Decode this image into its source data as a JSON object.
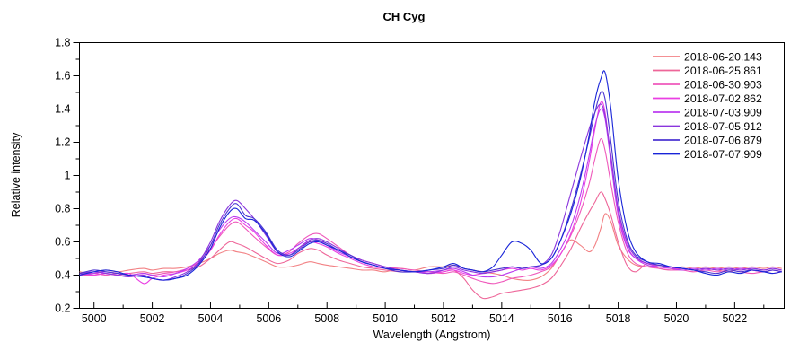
{
  "chart_data": {
    "type": "line",
    "title": "CH Cyg",
    "xlabel": "Wavelength (Angstrom)",
    "ylabel": "Relative intensity",
    "xlim": [
      4999.5,
      5023.7
    ],
    "ylim": [
      0.2,
      1.8
    ],
    "grid": false,
    "legend_position": "top-right",
    "axis_color": "#000000",
    "xticks": {
      "major_values": [
        5000,
        5002,
        5004,
        5006,
        5008,
        5010,
        5012,
        5014,
        5016,
        5018,
        5020,
        5022
      ],
      "major_labels": [
        "5000",
        "5002",
        "5004",
        "5006",
        "5008",
        "5010",
        "5012",
        "5014",
        "5016",
        "5018",
        "5020",
        "5022"
      ],
      "minor_step": 1
    },
    "yticks": {
      "major_values": [
        0.2,
        0.4,
        0.6,
        0.8,
        1.0,
        1.2,
        1.4,
        1.6,
        1.8
      ],
      "major_labels": [
        "0.2",
        "0.4",
        "0.6",
        "0.8",
        "1",
        "1.2",
        "1.4",
        "1.6",
        "1.8"
      ],
      "minor_step": 0.1
    },
    "x": [
      4999.5,
      5000.0,
      5000.4,
      5000.8,
      5001.2,
      5001.7,
      5002.0,
      5002.4,
      5002.8,
      5003.2,
      5003.6,
      5004.0,
      5004.3,
      5004.65,
      5004.9,
      5005.2,
      5005.5,
      5005.9,
      5006.3,
      5006.7,
      5007.0,
      5007.4,
      5007.7,
      5008.0,
      5008.4,
      5008.8,
      5009.2,
      5009.6,
      5010.0,
      5010.5,
      5011.0,
      5011.5,
      5012.0,
      5012.35,
      5012.7,
      5013.0,
      5013.35,
      5013.7,
      5014.0,
      5014.35,
      5014.7,
      5015.0,
      5015.35,
      5015.7,
      5016.0,
      5016.35,
      5016.7,
      5017.0,
      5017.2,
      5017.4,
      5017.55,
      5017.75,
      5018.0,
      5018.3,
      5018.6,
      5019.0,
      5019.4,
      5019.8,
      5020.2,
      5020.6,
      5021.0,
      5021.4,
      5021.8,
      5022.2,
      5022.6,
      5023.0,
      5023.3,
      5023.6
    ],
    "series": [
      {
        "name": "2018-06-20.143",
        "color": "#f28184",
        "values": [
          0.42,
          0.41,
          0.43,
          0.42,
          0.43,
          0.44,
          0.43,
          0.44,
          0.44,
          0.45,
          0.47,
          0.5,
          0.53,
          0.55,
          0.54,
          0.53,
          0.51,
          0.48,
          0.45,
          0.45,
          0.46,
          0.48,
          0.47,
          0.46,
          0.45,
          0.44,
          0.43,
          0.43,
          0.42,
          0.44,
          0.43,
          0.45,
          0.45,
          0.46,
          0.44,
          0.43,
          0.42,
          0.41,
          0.4,
          0.38,
          0.37,
          0.37,
          0.39,
          0.44,
          0.52,
          0.61,
          0.58,
          0.54,
          0.58,
          0.68,
          0.77,
          0.72,
          0.58,
          0.5,
          0.46,
          0.45,
          0.46,
          0.44,
          0.45,
          0.44,
          0.45,
          0.44,
          0.45,
          0.44,
          0.45,
          0.44,
          0.45,
          0.44
        ]
      },
      {
        "name": "2018-06-25.861",
        "color": "#ee6699",
        "values": [
          0.4,
          0.4,
          0.41,
          0.4,
          0.41,
          0.42,
          0.41,
          0.42,
          0.42,
          0.43,
          0.45,
          0.5,
          0.55,
          0.6,
          0.59,
          0.57,
          0.54,
          0.5,
          0.47,
          0.49,
          0.53,
          0.56,
          0.55,
          0.52,
          0.49,
          0.47,
          0.45,
          0.44,
          0.43,
          0.42,
          0.42,
          0.41,
          0.42,
          0.43,
          0.38,
          0.31,
          0.26,
          0.27,
          0.29,
          0.3,
          0.31,
          0.32,
          0.34,
          0.38,
          0.45,
          0.55,
          0.68,
          0.78,
          0.84,
          0.9,
          0.86,
          0.76,
          0.6,
          0.46,
          0.42,
          0.47,
          0.44,
          0.43,
          0.44,
          0.43,
          0.44,
          0.43,
          0.42,
          0.44,
          0.43,
          0.42,
          0.43,
          0.42
        ]
      },
      {
        "name": "2018-06-30.903",
        "color": "#ef58bb",
        "values": [
          0.4,
          0.41,
          0.4,
          0.41,
          0.4,
          0.41,
          0.4,
          0.41,
          0.42,
          0.44,
          0.48,
          0.56,
          0.63,
          0.7,
          0.72,
          0.68,
          0.63,
          0.57,
          0.52,
          0.54,
          0.59,
          0.64,
          0.65,
          0.62,
          0.57,
          0.52,
          0.49,
          0.47,
          0.45,
          0.44,
          0.43,
          0.42,
          0.41,
          0.42,
          0.4,
          0.38,
          0.36,
          0.35,
          0.36,
          0.38,
          0.39,
          0.4,
          0.42,
          0.45,
          0.52,
          0.63,
          0.78,
          0.95,
          1.1,
          1.22,
          1.15,
          0.95,
          0.72,
          0.54,
          0.47,
          0.45,
          0.44,
          0.43,
          0.43,
          0.42,
          0.43,
          0.42,
          0.43,
          0.42,
          0.41,
          0.42,
          0.41,
          0.42
        ]
      },
      {
        "name": "2018-07-02.862",
        "color": "#ea3fe3",
        "values": [
          0.41,
          0.4,
          0.41,
          0.4,
          0.41,
          0.35,
          0.38,
          0.4,
          0.41,
          0.43,
          0.47,
          0.55,
          0.64,
          0.72,
          0.74,
          0.7,
          0.66,
          0.58,
          0.52,
          0.53,
          0.56,
          0.6,
          0.59,
          0.57,
          0.53,
          0.5,
          0.47,
          0.45,
          0.44,
          0.43,
          0.42,
          0.41,
          0.42,
          0.43,
          0.41,
          0.4,
          0.41,
          0.42,
          0.43,
          0.44,
          0.43,
          0.44,
          0.43,
          0.46,
          0.52,
          0.64,
          0.83,
          1.08,
          1.28,
          1.44,
          1.38,
          1.1,
          0.78,
          0.58,
          0.5,
          0.47,
          0.45,
          0.44,
          0.44,
          0.43,
          0.44,
          0.43,
          0.44,
          0.43,
          0.44,
          0.43,
          0.44,
          0.43
        ]
      },
      {
        "name": "2018-07-03.909",
        "color": "#bb3cf0",
        "values": [
          0.4,
          0.41,
          0.42,
          0.41,
          0.4,
          0.41,
          0.4,
          0.39,
          0.41,
          0.44,
          0.49,
          0.58,
          0.67,
          0.74,
          0.75,
          0.72,
          0.67,
          0.6,
          0.53,
          0.55,
          0.58,
          0.62,
          0.61,
          0.58,
          0.54,
          0.51,
          0.48,
          0.46,
          0.44,
          0.43,
          0.42,
          0.42,
          0.43,
          0.44,
          0.42,
          0.4,
          0.39,
          0.39,
          0.4,
          0.42,
          0.44,
          0.45,
          0.44,
          0.47,
          0.55,
          0.68,
          0.88,
          1.12,
          1.3,
          1.4,
          1.34,
          1.08,
          0.76,
          0.57,
          0.5,
          0.46,
          0.45,
          0.44,
          0.43,
          0.44,
          0.43,
          0.44,
          0.43,
          0.44,
          0.43,
          0.42,
          0.43,
          0.42
        ]
      },
      {
        "name": "2018-07-05.912",
        "color": "#8a35dd",
        "values": [
          0.41,
          0.42,
          0.41,
          0.4,
          0.39,
          0.4,
          0.38,
          0.37,
          0.39,
          0.42,
          0.48,
          0.6,
          0.72,
          0.82,
          0.85,
          0.8,
          0.74,
          0.64,
          0.54,
          0.52,
          0.56,
          0.61,
          0.62,
          0.6,
          0.56,
          0.52,
          0.49,
          0.47,
          0.45,
          0.43,
          0.42,
          0.41,
          0.43,
          0.45,
          0.43,
          0.42,
          0.41,
          0.42,
          0.43,
          0.45,
          0.44,
          0.45,
          0.46,
          0.52,
          0.66,
          0.88,
          1.1,
          1.28,
          1.38,
          1.43,
          1.36,
          1.12,
          0.8,
          0.6,
          0.51,
          0.47,
          0.46,
          0.45,
          0.44,
          0.43,
          0.44,
          0.43,
          0.44,
          0.43,
          0.44,
          0.43,
          0.44,
          0.43
        ]
      },
      {
        "name": "2018-07-06.879",
        "color": "#4b35d2",
        "values": [
          0.41,
          0.43,
          0.42,
          0.41,
          0.4,
          0.39,
          0.38,
          0.37,
          0.38,
          0.41,
          0.47,
          0.58,
          0.7,
          0.8,
          0.83,
          0.76,
          0.74,
          0.66,
          0.55,
          0.52,
          0.55,
          0.6,
          0.61,
          0.59,
          0.55,
          0.52,
          0.48,
          0.46,
          0.44,
          0.42,
          0.42,
          0.43,
          0.44,
          0.46,
          0.44,
          0.43,
          0.42,
          0.43,
          0.44,
          0.45,
          0.44,
          0.45,
          0.46,
          0.5,
          0.6,
          0.78,
          1.0,
          1.22,
          1.38,
          1.5,
          1.46,
          1.2,
          0.85,
          0.62,
          0.52,
          0.48,
          0.46,
          0.45,
          0.44,
          0.43,
          0.42,
          0.41,
          0.43,
          0.42,
          0.43,
          0.42,
          0.43,
          0.42
        ]
      },
      {
        "name": "2018-07-07.909",
        "color": "#1824d8",
        "values": [
          0.4,
          0.42,
          0.43,
          0.42,
          0.4,
          0.39,
          0.38,
          0.37,
          0.38,
          0.4,
          0.46,
          0.56,
          0.68,
          0.78,
          0.8,
          0.74,
          0.73,
          0.65,
          0.54,
          0.51,
          0.54,
          0.59,
          0.6,
          0.58,
          0.55,
          0.51,
          0.48,
          0.46,
          0.44,
          0.43,
          0.42,
          0.43,
          0.45,
          0.47,
          0.44,
          0.43,
          0.42,
          0.45,
          0.52,
          0.6,
          0.59,
          0.55,
          0.47,
          0.5,
          0.6,
          0.76,
          0.98,
          1.24,
          1.45,
          1.58,
          1.62,
          1.4,
          0.98,
          0.68,
          0.54,
          0.48,
          0.47,
          0.45,
          0.44,
          0.43,
          0.41,
          0.4,
          0.42,
          0.41,
          0.43,
          0.42,
          0.41,
          0.42
        ]
      }
    ]
  }
}
